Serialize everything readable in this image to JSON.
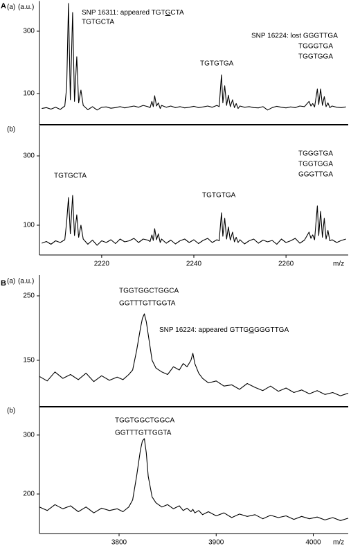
{
  "panel_labels": [
    "A",
    "B"
  ],
  "chart_data": [
    {
      "type": "line",
      "panel": "(a)",
      "ylabel": "(a.u.)",
      "xlim": [
        2206.5,
        2273.5
      ],
      "ylim": [
        0,
        390
      ],
      "yticks": [
        100,
        300
      ],
      "series": [
        {
          "color": "#000000",
          "x": [
            2207,
            2208,
            2209,
            2210,
            2211,
            2212,
            2212.4,
            2212.8,
            2213.2,
            2213.7,
            2214.1,
            2214.6,
            2215,
            2215.5,
            2216,
            2217,
            2218,
            2219,
            2220,
            2221,
            2222,
            2223,
            2224,
            2225,
            2226,
            2227,
            2228,
            2229,
            2230,
            2230.5,
            2230.9,
            2231.2,
            2231.5,
            2231.9,
            2232.3,
            2232.7,
            2233,
            2234,
            2235,
            2236,
            2237,
            2238,
            2239,
            2240,
            2241,
            2242,
            2243,
            2244,
            2245,
            2245.5,
            2246,
            2246.3,
            2246.7,
            2247.1,
            2247.5,
            2247.9,
            2248.4,
            2248.8,
            2249.2,
            2249.6,
            2250,
            2251,
            2252,
            2253,
            2254,
            2255,
            2256,
            2257,
            2258,
            2259,
            2260,
            2261,
            2262,
            2263,
            2264,
            2265,
            2265.4,
            2265.8,
            2266.2,
            2266.8,
            2267.1,
            2267.5,
            2267.9,
            2268.3,
            2268.7,
            2269.1,
            2269.5,
            2270,
            2271,
            2272,
            2273
          ],
          "values": [
            52,
            55,
            50,
            56,
            49,
            60,
            120,
            389,
            80,
            360,
            75,
            218,
            70,
            111,
            62,
            48,
            58,
            47,
            56,
            57,
            53,
            55,
            58,
            54,
            57,
            60,
            56,
            62,
            58,
            55,
            75,
            58,
            93,
            60,
            70,
            52,
            62,
            56,
            60,
            55,
            58,
            54,
            56,
            59,
            55,
            57,
            60,
            56,
            62,
            58,
            160,
            70,
            125,
            62,
            95,
            58,
            80,
            55,
            68,
            52,
            60,
            56,
            58,
            55,
            54,
            58,
            47,
            55,
            59,
            56,
            54,
            57,
            55,
            60,
            58,
            75,
            60,
            68,
            57,
            115,
            65,
            115,
            62,
            90,
            58,
            70,
            55,
            60,
            56,
            55,
            57
          ]
        }
      ],
      "annotations": [
        [
          "SNP 16311: appeared TGT",
          "G",
          "CTA"
        ],
        "TGTGCTA",
        "SNP 16224: lost GGGTTGA",
        "TGGGTGA",
        "TGGTGGA",
        "TGTGTGA"
      ]
    },
    {
      "type": "line",
      "panel": "(b)",
      "xlabel": "m/z",
      "xlim": [
        2206.5,
        2273.5
      ],
      "xticks": [
        2220,
        2240,
        2260
      ],
      "ylim": [
        14,
        388
      ],
      "yticks": [
        100,
        300
      ],
      "series": [
        {
          "color": "#000000",
          "x": [
            2207,
            2208,
            2209,
            2210,
            2211,
            2212,
            2212.4,
            2212.8,
            2213.2,
            2213.7,
            2214.1,
            2214.6,
            2215,
            2215.5,
            2216,
            2217,
            2218,
            2219,
            2220,
            2221,
            2222,
            2223,
            2224,
            2225,
            2226,
            2227,
            2228,
            2229,
            2230,
            2230.5,
            2230.9,
            2231.2,
            2231.5,
            2231.9,
            2232.3,
            2232.7,
            2233,
            2234,
            2235,
            2236,
            2237,
            2238,
            2239,
            2240,
            2241,
            2242,
            2243,
            2244,
            2245,
            2245.5,
            2246,
            2246.3,
            2246.7,
            2247.1,
            2247.5,
            2247.9,
            2248.4,
            2248.8,
            2249.2,
            2249.6,
            2250,
            2251,
            2252,
            2253,
            2254,
            2255,
            2256,
            2257,
            2258,
            2259,
            2260,
            2261,
            2262,
            2263,
            2264,
            2265,
            2265.4,
            2265.8,
            2266.2,
            2266.8,
            2267.1,
            2267.5,
            2267.9,
            2268.3,
            2268.7,
            2269.1,
            2269.5,
            2270,
            2271,
            2272,
            2273
          ],
          "values": [
            48,
            53,
            45,
            55,
            50,
            58,
            110,
            180,
            75,
            186,
            70,
            130,
            65,
            100,
            60,
            45,
            57,
            42,
            55,
            50,
            58,
            47,
            60,
            52,
            55,
            62,
            50,
            60,
            57,
            53,
            72,
            56,
            90,
            58,
            75,
            50,
            60,
            48,
            57,
            46,
            55,
            60,
            50,
            58,
            47,
            56,
            62,
            50,
            58,
            55,
            136,
            68,
            120,
            60,
            95,
            57,
            80,
            52,
            65,
            50,
            58,
            46,
            55,
            60,
            48,
            57,
            52,
            56,
            45,
            60,
            50,
            55,
            62,
            48,
            57,
            80,
            62,
            72,
            58,
            156,
            70,
            140,
            65,
            120,
            60,
            85,
            55,
            58,
            50,
            56,
            60
          ]
        }
      ],
      "annotations": [
        "TGTGCTA",
        "TGTGTGA",
        "TGGGTGA",
        "TGGTGGA",
        "GGGTTGA"
      ]
    },
    {
      "type": "line",
      "panel": "(a)",
      "ylabel": "(a.u.)",
      "xlim": [
        3718,
        4036
      ],
      "ylim": [
        78,
        279
      ],
      "yticks": [
        150,
        250
      ],
      "series": [
        {
          "color": "#000000",
          "x": [
            3718,
            3726,
            3734,
            3742,
            3750,
            3758,
            3766,
            3774,
            3782,
            3790,
            3798,
            3804,
            3810,
            3814,
            3818,
            3822,
            3824,
            3826,
            3828,
            3830,
            3834,
            3838,
            3844,
            3850,
            3856,
            3862,
            3866,
            3870,
            3874,
            3876,
            3878,
            3882,
            3886,
            3892,
            3900,
            3908,
            3916,
            3924,
            3932,
            3940,
            3948,
            3956,
            3964,
            3972,
            3980,
            3988,
            3996,
            4004,
            4012,
            4020,
            4028,
            4036
          ],
          "values": [
            125,
            118,
            132,
            122,
            128,
            120,
            130,
            117,
            126,
            119,
            124,
            120,
            128,
            135,
            165,
            200,
            215,
            222,
            210,
            190,
            150,
            138,
            132,
            128,
            140,
            135,
            145,
            140,
            150,
            161,
            145,
            130,
            122,
            115,
            118,
            110,
            112,
            105,
            114,
            108,
            103,
            110,
            102,
            107,
            100,
            104,
            98,
            103,
            97,
            100,
            95,
            99
          ]
        }
      ],
      "annotations": [
        "TGGTGGCTGGCA",
        "GGTTTGTTGGTA",
        [
          "SNP 16224: appeared GTTG",
          "G",
          "GGGTTGA"
        ]
      ]
    },
    {
      "type": "line",
      "panel": "(b)",
      "xlabel": "m/z",
      "xlim": [
        3718,
        4036
      ],
      "xticks": [
        3800,
        3900,
        4000
      ],
      "ylim": [
        133,
        348
      ],
      "yticks": [
        200,
        300
      ],
      "series": [
        {
          "color": "#000000",
          "x": [
            3718,
            3726,
            3734,
            3742,
            3750,
            3758,
            3766,
            3774,
            3782,
            3790,
            3798,
            3804,
            3810,
            3814,
            3818,
            3822,
            3824,
            3826,
            3828,
            3830,
            3834,
            3838,
            3844,
            3850,
            3856,
            3862,
            3866,
            3870,
            3874,
            3876,
            3878,
            3882,
            3886,
            3892,
            3900,
            3908,
            3916,
            3924,
            3932,
            3940,
            3948,
            3956,
            3964,
            3972,
            3980,
            3988,
            3996,
            4004,
            4012,
            4020,
            4028,
            4036
          ],
          "values": [
            178,
            172,
            182,
            175,
            180,
            170,
            178,
            168,
            176,
            172,
            175,
            170,
            178,
            190,
            230,
            275,
            290,
            294,
            270,
            230,
            195,
            185,
            178,
            182,
            175,
            180,
            172,
            176,
            170,
            174,
            168,
            172,
            165,
            170,
            163,
            168,
            160,
            166,
            162,
            165,
            158,
            164,
            160,
            163,
            157,
            162,
            158,
            161,
            156,
            160,
            155,
            159
          ]
        }
      ],
      "annotations": [
        "TGGTGGCTGGCA",
        "GGTTTGTTGGTA"
      ]
    }
  ]
}
